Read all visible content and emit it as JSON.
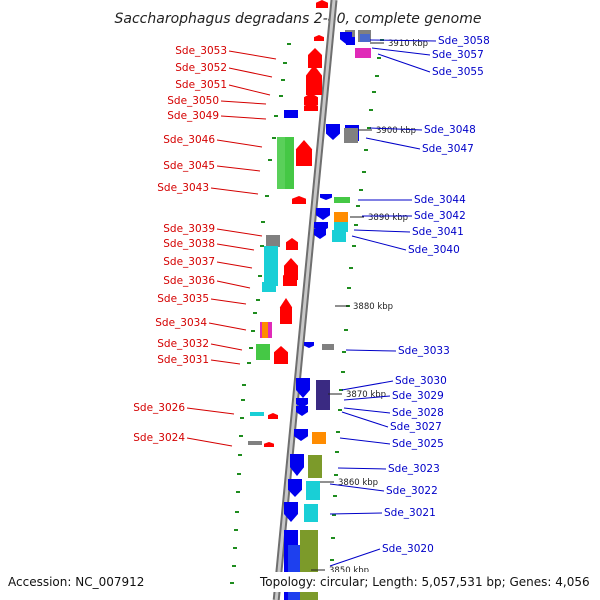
{
  "title": "Saccharophagus degradans 2-40, complete genome",
  "footer": {
    "accession": "Accession: NC_007912",
    "summary": "Topology: circular; Length: 5,057,531 bp; Genes: 4,056"
  },
  "colors": {
    "forward": "#ff0000",
    "reverse": "#0000ee",
    "cyan": "#19cfd6",
    "green": "#45c845",
    "gray": "#808080",
    "olive": "#7c9a2a",
    "orange": "#ff8c00",
    "magenta": "#e02ab8",
    "purple": "#3a2a82",
    "backbone": "#9a9a9a",
    "left_label": "#d40000",
    "right_label": "#0000c8",
    "gc_dash": "#1e8c1e"
  },
  "ticks": [
    {
      "label": "3910 kbp"
    },
    {
      "label": "3900 kbp"
    },
    {
      "label": "3890 kbp"
    },
    {
      "label": "3880 kbp"
    },
    {
      "label": "3870 kbp"
    },
    {
      "label": "3860 kbp"
    },
    {
      "label": "3850 kbp"
    }
  ],
  "left_labels": [
    "Sde_3053",
    "Sde_3052",
    "Sde_3051",
    "Sde_3050",
    "Sde_3049",
    "Sde_3046",
    "Sde_3045",
    "Sde_3043",
    "Sde_3039",
    "Sde_3038",
    "Sde_3037",
    "Sde_3036",
    "Sde_3035",
    "Sde_3034",
    "Sde_3032",
    "Sde_3031",
    "Sde_3026",
    "Sde_3024"
  ],
  "right_labels": [
    "Sde_3058",
    "Sde_3057",
    "Sde_3055",
    "Sde_3048",
    "Sde_3047",
    "Sde_3044",
    "Sde_3042",
    "Sde_3041",
    "Sde_3040",
    "Sde_3033",
    "Sde_3030",
    "Sde_3029",
    "Sde_3028",
    "Sde_3027",
    "Sde_3025",
    "Sde_3023",
    "Sde_3022",
    "Sde_3021",
    "Sde_3020"
  ]
}
